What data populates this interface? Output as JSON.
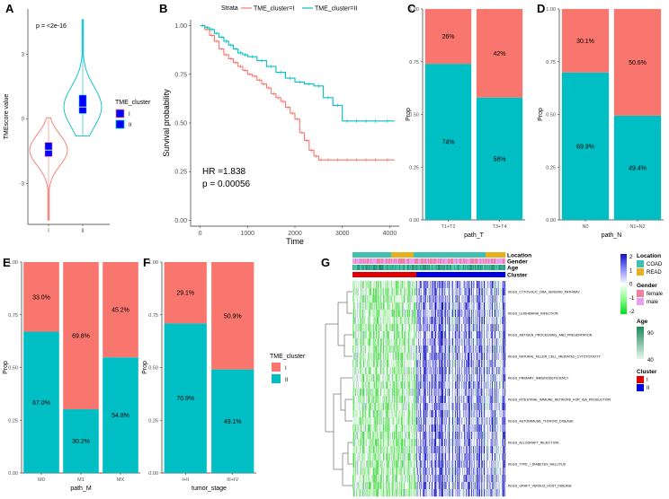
{
  "colors": {
    "red": "#F8766D",
    "teal": "#00BFC4",
    "green_bright": "#00CC33",
    "blue_box": "#0000FF",
    "coad": "#40C0B0",
    "read": "#E8B020",
    "female": "#F080A0",
    "male": "#E8A0F0",
    "cluster_I": "#E00000",
    "cluster_II": "#0000E0"
  },
  "chart_data": [
    {
      "panel": "A",
      "type": "violin",
      "ylabel": "TMEscore value",
      "annotation": "p = <2e-16",
      "categories": [
        "I",
        "II"
      ],
      "yticks": [
        -3,
        0,
        3
      ],
      "ylim": [
        -4.9,
        5.1
      ],
      "summary": [
        {
          "name": "I",
          "q1": -1.75,
          "median": -1.45,
          "q3": -1.1,
          "min": -4.7,
          "max": 0.05
        },
        {
          "name": "II",
          "q1": 0.25,
          "median": 0.55,
          "q3": 1.1,
          "min": -0.8,
          "max": 4.6
        }
      ],
      "legend": {
        "title": "TME_cluster",
        "items": [
          "I",
          "II"
        ]
      }
    },
    {
      "panel": "B",
      "type": "line",
      "xlabel": "Time",
      "ylabel": "Survival probability",
      "legend_title": "Strata",
      "xticks": [
        0,
        1000,
        2000,
        3000,
        4000
      ],
      "yticks": [
        "0.00",
        "0.25",
        "0.50",
        "0.75",
        "1.00"
      ],
      "xlim": [
        -200,
        4200
      ],
      "ylim": [
        -0.03,
        1.03
      ],
      "annotation": [
        "HR =1.838",
        "p = 0.00056"
      ],
      "series": [
        {
          "name": "TME_cluster=I",
          "x": [
            0,
            100,
            200,
            300,
            400,
            500,
            600,
            700,
            800,
            900,
            1000,
            1100,
            1200,
            1300,
            1400,
            1500,
            1600,
            1700,
            1800,
            1900,
            2000,
            2100,
            2200,
            2300,
            2400,
            2500,
            2600,
            2800,
            3000,
            3200,
            3400,
            3600,
            3800,
            4100
          ],
          "y": [
            1.0,
            0.98,
            0.95,
            0.92,
            0.88,
            0.85,
            0.83,
            0.81,
            0.79,
            0.77,
            0.75,
            0.74,
            0.72,
            0.7,
            0.68,
            0.65,
            0.63,
            0.61,
            0.58,
            0.55,
            0.52,
            0.45,
            0.41,
            0.36,
            0.33,
            0.31,
            0.31,
            0.31,
            0.31,
            0.31,
            0.31,
            0.31,
            0.31,
            0.31
          ]
        },
        {
          "name": "TME_cluster=II",
          "x": [
            0,
            100,
            200,
            300,
            400,
            500,
            600,
            700,
            800,
            900,
            1000,
            1200,
            1400,
            1600,
            1800,
            2000,
            2200,
            2400,
            2600,
            2800,
            3000,
            3200,
            3400,
            3600,
            3800,
            4100
          ],
          "y": [
            1.0,
            0.99,
            0.98,
            0.96,
            0.94,
            0.92,
            0.9,
            0.88,
            0.86,
            0.85,
            0.84,
            0.82,
            0.79,
            0.76,
            0.73,
            0.71,
            0.7,
            0.69,
            0.63,
            0.59,
            0.51,
            0.51,
            0.51,
            0.51,
            0.51,
            0.51
          ]
        }
      ]
    },
    {
      "panel": "C",
      "type": "bar",
      "stacked": true,
      "xlabel": "path_T",
      "ylabel": "Prop",
      "categories": [
        "T1+T2",
        "T3+T4"
      ],
      "yticks": [
        "0.00",
        "0.25",
        "0.50",
        "0.75",
        "1.00"
      ],
      "series": [
        {
          "name": "II",
          "values": [
            0.74,
            0.58
          ],
          "labels": [
            "74%",
            "58%"
          ]
        },
        {
          "name": "I",
          "values": [
            0.26,
            0.42
          ],
          "labels": [
            "26%",
            "42%"
          ]
        }
      ]
    },
    {
      "panel": "D",
      "type": "bar",
      "stacked": true,
      "xlabel": "path_N",
      "ylabel": "Prop",
      "categories": [
        "N0",
        "N1+N2"
      ],
      "yticks": [
        "0.00",
        "0.25",
        "0.50",
        "0.75",
        "1.00"
      ],
      "series": [
        {
          "name": "II",
          "values": [
            0.699,
            0.494
          ],
          "labels": [
            "69.9%",
            "49.4%"
          ]
        },
        {
          "name": "I",
          "values": [
            0.301,
            0.506
          ],
          "labels": [
            "30.1%",
            "50.6%"
          ]
        }
      ]
    },
    {
      "panel": "E",
      "type": "bar",
      "stacked": true,
      "xlabel": "path_M",
      "ylabel": "Prop",
      "categories": [
        "M0",
        "M1",
        "MX"
      ],
      "yticks": [
        "0.00",
        "0.25",
        "0.50",
        "0.75",
        "1.00"
      ],
      "series": [
        {
          "name": "II",
          "values": [
            0.67,
            0.302,
            0.548
          ],
          "labels": [
            "67.0%",
            "30.2%",
            "54.8%"
          ]
        },
        {
          "name": "I",
          "values": [
            0.33,
            0.698,
            0.452
          ],
          "labels": [
            "33.0%",
            "69.8%",
            "45.2%"
          ]
        }
      ]
    },
    {
      "panel": "F",
      "type": "bar",
      "stacked": true,
      "xlabel": "tumor_stage",
      "ylabel": "Prop",
      "categories": [
        "I+II",
        "III+IV"
      ],
      "yticks": [
        "0.00",
        "0.25",
        "0.50",
        "0.75",
        "1.00"
      ],
      "series": [
        {
          "name": "II",
          "values": [
            0.709,
            0.491
          ],
          "labels": [
            "70.9%",
            "49.1%"
          ]
        },
        {
          "name": "I",
          "values": [
            0.291,
            0.509
          ],
          "labels": [
            "29.1%",
            "50.9%"
          ]
        }
      ],
      "legend": {
        "title": "TME_cluster",
        "items": [
          "I",
          "II"
        ]
      }
    },
    {
      "panel": "G",
      "type": "heatmap",
      "annotation_tracks": [
        "Location",
        "Gender",
        "Age",
        "Cluster"
      ],
      "rows": [
        "KEGG_CYTOSOLIC_DNA_SENSING_PATHWAY",
        "KEGG_LEISHMANIA_INFECTION",
        "KEGG_ANTIGEN_PROCESSING_AND_PRESENTATION",
        "KEGG_NATURAL_KILLER_CELL_MEDIATED_CYTOTOXICITY",
        "KEGG_PRIMARY_IMMUNODEFICIENCY",
        "KEGG_INTESTINAL_IMMUNE_NETWORK_FOR_IGA_PRODUCTION",
        "KEGG_AUTOIMMUNE_THYROID_DISEASE",
        "KEGG_ALLOGRAFT_REJECTION",
        "KEGG_TYPE_I_DIABETES_MELLITUS",
        "KEGG_GRAFT_VERSUS_HOST_DISEASE"
      ],
      "color_scale": {
        "ticks": [
          "2",
          "1",
          "0",
          "-1",
          "-2"
        ]
      },
      "legend": {
        "location": {
          "title": "Location",
          "items": [
            "COAD",
            "READ"
          ]
        },
        "gender": {
          "title": "Gender",
          "items": [
            "female",
            "male"
          ]
        },
        "age": {
          "title": "Age",
          "ticks": [
            "90",
            "40"
          ]
        },
        "cluster": {
          "title": "Cluster",
          "items": [
            "I",
            "II"
          ]
        }
      }
    }
  ],
  "panel_letters": [
    "A",
    "B",
    "C",
    "D",
    "E",
    "F",
    "G"
  ]
}
